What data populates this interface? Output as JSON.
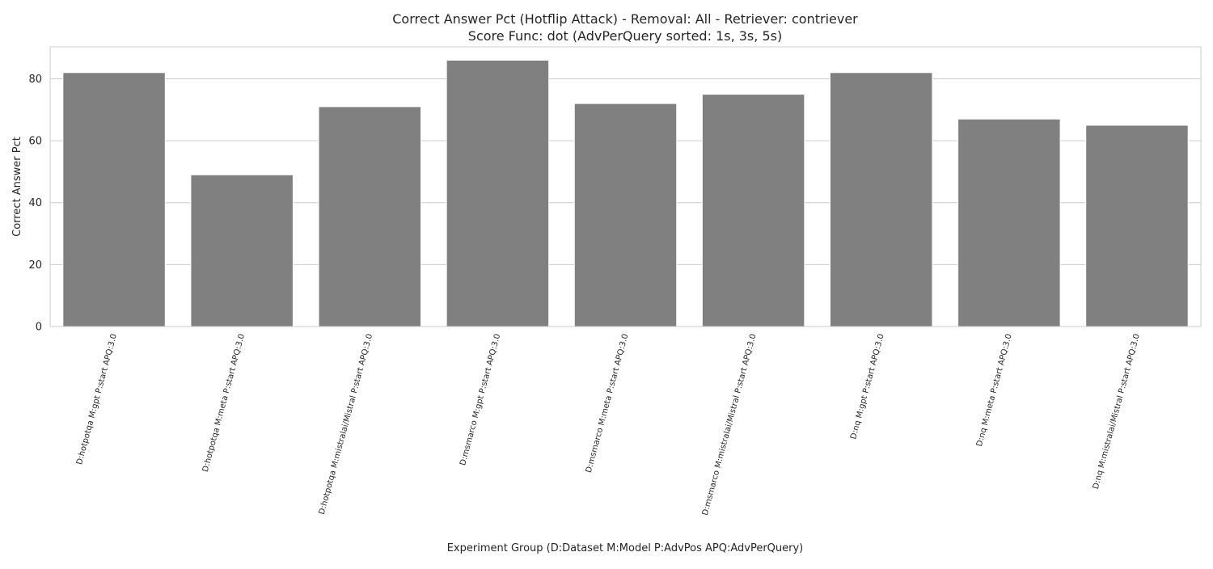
{
  "chart_data": {
    "type": "bar",
    "title": "Correct Answer Pct (Hotflip Attack) - Removal: All - Retriever: contriever",
    "subtitle": "Score Func: dot (AdvPerQuery sorted: 1s, 3s, 5s)",
    "xlabel": "Experiment Group (D:Dataset M:Model P:AdvPos APQ:AdvPerQuery)",
    "ylabel": "Correct Answer Pct",
    "categories": [
      "D:hotpotqa M:gpt P:start APQ:3.0",
      "D:hotpotqa M:meta P:start APQ:3.0",
      "D:hotpotqa M:mistralai/Mistral P:start APQ:3.0",
      "D:msmarco M:gpt P:start APQ:3.0",
      "D:msmarco M:meta P:start APQ:3.0",
      "D:msmarco M:mistralai/Mistral P:start APQ:3.0",
      "D:nq M:gpt P:start APQ:3.0",
      "D:nq M:meta P:start APQ:3.0",
      "D:nq M:mistralai/Mistral P:start APQ:3.0"
    ],
    "values": [
      82,
      49,
      71,
      86,
      72,
      75,
      82,
      67,
      65
    ],
    "ylim": [
      0,
      90.3
    ],
    "yticks": [
      0,
      20,
      40,
      60,
      80
    ],
    "grid": "horizontal",
    "legend": "none",
    "bar_color": "#808080"
  }
}
